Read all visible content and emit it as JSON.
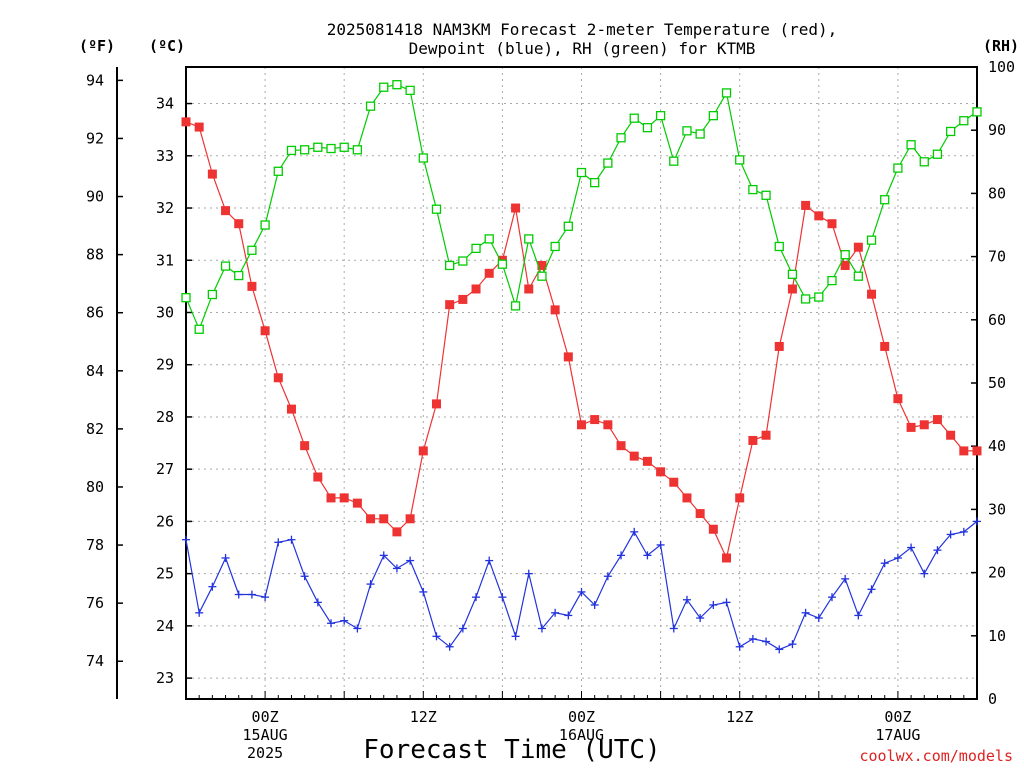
{
  "chart_data": {
    "type": "line",
    "title_lines": [
      "2025081418 NAM3KM Forecast 2-meter Temperature (red),",
      "Dewpoint (blue), RH (green) for KTMB"
    ],
    "xlabel": "Forecast Time (UTC)",
    "credit": "coolwx.com/models",
    "units": {
      "fahrenheit": "(ºF)",
      "celsius": "(ºC)",
      "rh": "(RH)"
    },
    "x_range_hours": [
      -6,
      54
    ],
    "x_ticks": [
      {
        "hour": 0,
        "lines": [
          "00Z",
          "15AUG",
          "2025"
        ]
      },
      {
        "hour": 12,
        "lines": [
          "12Z"
        ]
      },
      {
        "hour": 24,
        "lines": [
          "00Z",
          "16AUG"
        ]
      },
      {
        "hour": 36,
        "lines": [
          "12Z"
        ]
      },
      {
        "hour": 48,
        "lines": [
          "00Z",
          "17AUG"
        ]
      }
    ],
    "celsius_axis": {
      "range": [
        22.6,
        34.7
      ],
      "ticks": [
        "23",
        "24",
        "25",
        "26",
        "27",
        "28",
        "29",
        "30",
        "31",
        "32",
        "33",
        "34"
      ]
    },
    "fahrenheit_axis": {
      "range": [
        72.7,
        94.46
      ],
      "ticks": [
        "74",
        "76",
        "78",
        "80",
        "82",
        "84",
        "86",
        "88",
        "90",
        "92",
        "94"
      ]
    },
    "rh_axis": {
      "range": [
        0,
        100
      ],
      "ticks": [
        "0",
        "10",
        "20",
        "30",
        "40",
        "50",
        "60",
        "70",
        "80",
        "90",
        "100"
      ]
    },
    "grid": true,
    "colors": {
      "temperature": "#ee3333",
      "dewpoint": "#2233dd",
      "rh": "#00cc00",
      "grid": "#aaaaaa"
    },
    "x_hours": [
      -6,
      -5,
      -4,
      -3,
      -2,
      -1,
      0,
      1,
      2,
      3,
      4,
      5,
      6,
      7,
      8,
      9,
      10,
      11,
      12,
      13,
      14,
      15,
      16,
      17,
      18,
      19,
      20,
      21,
      22,
      23,
      24,
      25,
      26,
      27,
      28,
      29,
      30,
      31,
      32,
      33,
      34,
      35,
      36,
      37,
      38,
      39,
      40,
      41,
      42,
      43,
      44,
      45,
      46,
      47,
      48,
      49,
      50,
      51,
      52,
      53,
      54
    ],
    "series": [
      {
        "name": "Temperature (red)",
        "axis": "celsius",
        "marker": "filled-square",
        "values": [
          33.65,
          33.55,
          32.65,
          31.95,
          31.7,
          30.5,
          29.65,
          28.75,
          28.15,
          27.45,
          26.85,
          26.45,
          26.45,
          26.35,
          26.05,
          26.05,
          25.8,
          26.05,
          27.35,
          28.25,
          30.15,
          30.25,
          30.45,
          30.75,
          31.0,
          32.0,
          30.45,
          30.9,
          30.05,
          29.15,
          27.85,
          27.95,
          27.85,
          27.45,
          27.25,
          27.15,
          26.95,
          26.75,
          26.45,
          26.15,
          25.85,
          25.3,
          26.45,
          27.55,
          27.65,
          29.35,
          30.45,
          32.05,
          31.85,
          31.7,
          30.9,
          31.25,
          30.35,
          29.35,
          28.35,
          27.8,
          27.85,
          27.95,
          27.65,
          27.35,
          27.35
        ]
      },
      {
        "name": "Dewpoint (blue)",
        "axis": "celsius",
        "marker": "plus",
        "values": [
          25.65,
          24.25,
          24.75,
          25.3,
          24.6,
          24.6,
          24.55,
          25.6,
          25.65,
          24.95,
          24.45,
          24.05,
          24.1,
          23.95,
          24.8,
          25.35,
          25.1,
          25.25,
          24.65,
          23.8,
          23.6,
          23.95,
          24.55,
          25.25,
          24.55,
          23.8,
          25.0,
          23.95,
          24.25,
          24.2,
          24.65,
          24.4,
          24.95,
          25.35,
          25.8,
          25.35,
          25.55,
          23.95,
          24.5,
          24.15,
          24.4,
          24.45,
          23.6,
          23.75,
          23.7,
          23.55,
          23.65,
          24.25,
          24.15,
          24.55,
          24.9,
          24.2,
          24.7,
          25.2,
          25.3,
          25.5,
          25.0,
          25.45,
          25.75,
          25.8,
          26.0
        ]
      },
      {
        "name": "RH (green)",
        "axis": "rh",
        "marker": "open-square",
        "values": [
          63.5,
          58.5,
          64,
          68.5,
          67,
          71,
          75,
          83.5,
          86.8,
          86.9,
          87.3,
          87.1,
          87.3,
          86.9,
          93.8,
          96.8,
          97.2,
          96.3,
          85.6,
          77.5,
          68.6,
          69.3,
          71.3,
          72.8,
          68.8,
          62.2,
          72.8,
          66.9,
          71.6,
          74.8,
          83.3,
          81.7,
          84.8,
          88.8,
          91.9,
          90.4,
          92.3,
          85.1,
          89.9,
          89.4,
          92.3,
          95.9,
          85.3,
          80.6,
          79.7,
          71.6,
          67.2,
          63.3,
          63.6,
          66.2,
          70.3,
          66.9,
          72.6,
          79.0,
          84.0,
          87.7,
          85.0,
          86.2,
          89.8,
          91.5,
          92.9
        ]
      }
    ]
  }
}
